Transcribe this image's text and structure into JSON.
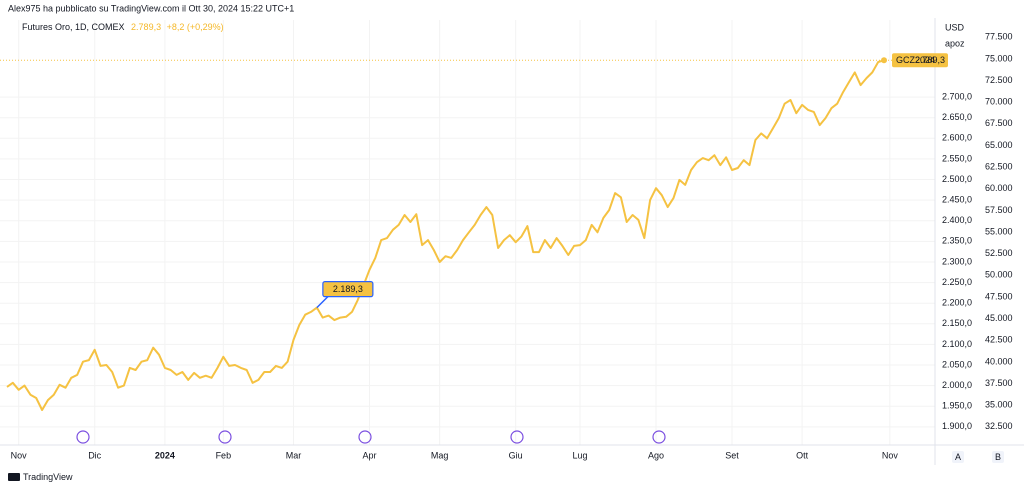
{
  "header": "Alex975 ha pubblicato su TradingView.com il Ott 30, 2024 15:22 UTC+1",
  "footer": "TradingView",
  "buttons": [
    "A",
    "B"
  ],
  "chart_data": {
    "type": "line",
    "title": "Futures Oro, 1D, COMEX",
    "price": "2.789,3",
    "change": "+8,2 (+0,29%)",
    "currency": "USD",
    "y2_label": "apoz",
    "annotation": "2.189,3",
    "grid": true,
    "categories": [
      null,
      null,
      "Nov",
      null,
      null,
      null,
      null,
      null,
      null,
      null,
      null,
      null,
      null,
      null,
      null,
      "Dic",
      null,
      null,
      null,
      null,
      null,
      null,
      null,
      null,
      null,
      null,
      null,
      "2024",
      null,
      null,
      null,
      null,
      null,
      null,
      null,
      null,
      null,
      "Feb",
      null,
      null,
      null,
      null,
      null,
      null,
      null,
      null,
      null,
      null,
      null,
      "Mar",
      null,
      null,
      null,
      null,
      null,
      null,
      null,
      null,
      null,
      null,
      null,
      null,
      "Apr",
      null,
      null,
      null,
      null,
      null,
      null,
      null,
      null,
      null,
      null,
      null,
      "Mag",
      null,
      null,
      null,
      null,
      null,
      null,
      null,
      null,
      null,
      null,
      null,
      null,
      "Giu",
      null,
      null,
      null,
      null,
      null,
      null,
      null,
      null,
      null,
      null,
      "Lug",
      null,
      null,
      null,
      null,
      null,
      null,
      null,
      null,
      null,
      null,
      null,
      null,
      "Ago",
      null,
      null,
      null,
      null,
      null,
      null,
      null,
      null,
      null,
      null,
      null,
      null,
      "Set",
      null,
      null,
      null,
      null,
      null,
      null,
      null,
      null,
      null,
      null,
      null,
      "Ott",
      null,
      null,
      null,
      null,
      null,
      null,
      null,
      null,
      null,
      null,
      null,
      null,
      null,
      null,
      "Nov"
    ],
    "series": [
      {
        "name": "GCZ2024",
        "color": "#f5c242",
        "values": [
          1997,
          2007,
          1990,
          2000,
          1978,
          1970,
          1941,
          1965,
          1978,
          2002,
          1995,
          2019,
          2026,
          2058,
          2062,
          2087,
          2048,
          2050,
          2033,
          1995,
          2000,
          2043,
          2038,
          2058,
          2062,
          2092,
          2075,
          2043,
          2038,
          2026,
          2033,
          2014,
          2031,
          2019,
          2024,
          2019,
          2043,
          2070,
          2048,
          2050,
          2043,
          2038,
          2007,
          2014,
          2033,
          2033,
          2048,
          2043,
          2058,
          2111,
          2147,
          2172,
          2179,
          2189.3,
          2165,
          2170,
          2159,
          2165,
          2167,
          2179,
          2208,
          2244,
          2281,
          2310,
          2353,
          2358,
          2378,
          2390,
          2414,
          2397,
          2416,
          2341,
          2353,
          2329,
          2300,
          2314,
          2310,
          2329,
          2353,
          2372,
          2390,
          2414,
          2433,
          2414,
          2334,
          2353,
          2365,
          2348,
          2362,
          2387,
          2324,
          2324,
          2353,
          2334,
          2358,
          2339,
          2317,
          2339,
          2341,
          2353,
          2390,
          2372,
          2407,
          2426,
          2467,
          2457,
          2397,
          2414,
          2402,
          2358,
          2450,
          2479,
          2462,
          2433,
          2455,
          2499,
          2487,
          2523,
          2542,
          2552,
          2547,
          2559,
          2535,
          2554,
          2523,
          2528,
          2547,
          2535,
          2596,
          2612,
          2600,
          2624,
          2649,
          2684,
          2693,
          2661,
          2681,
          2669,
          2664,
          2632,
          2649,
          2673,
          2684,
          2712,
          2736,
          2760,
          2729,
          2746,
          2760,
          2785,
          2789.3,
          null
        ]
      }
    ],
    "ylim": [
      1856,
      2887
    ],
    "yticks": [
      {
        "value": 1900,
        "label": "1.900,0"
      },
      {
        "value": 1950,
        "label": "1.950,0"
      },
      {
        "value": 2000,
        "label": "2.000,0"
      },
      {
        "value": 2050,
        "label": "2.050,0"
      },
      {
        "value": 2100,
        "label": "2.100,0"
      },
      {
        "value": 2150,
        "label": "2.150,0"
      },
      {
        "value": 2200,
        "label": "2.200,0"
      },
      {
        "value": 2250,
        "label": "2.250,0"
      },
      {
        "value": 2300,
        "label": "2.300,0"
      },
      {
        "value": 2350,
        "label": "2.350,0"
      },
      {
        "value": 2400,
        "label": "2.400,0"
      },
      {
        "value": 2450,
        "label": "2.450,0"
      },
      {
        "value": 2500,
        "label": "2.500,0"
      },
      {
        "value": 2550,
        "label": "2.550,0"
      },
      {
        "value": 2600,
        "label": "2.600,0"
      },
      {
        "value": 2650,
        "label": "2.650,0"
      },
      {
        "value": 2700,
        "label": "2.700,0"
      }
    ],
    "y2lim": [
      30.4,
      79.5
    ],
    "y2ticks": [
      {
        "value": 32.5,
        "label": "32.500"
      },
      {
        "value": 35,
        "label": "35.000"
      },
      {
        "value": 37.5,
        "label": "37.500"
      },
      {
        "value": 40,
        "label": "40.000"
      },
      {
        "value": 42.5,
        "label": "42.500"
      },
      {
        "value": 45,
        "label": "45.000"
      },
      {
        "value": 47.5,
        "label": "47.500"
      },
      {
        "value": 50,
        "label": "50.000"
      },
      {
        "value": 52.5,
        "label": "52.500"
      },
      {
        "value": 55,
        "label": "55.000"
      },
      {
        "value": 57.5,
        "label": "57.500"
      },
      {
        "value": 60,
        "label": "60.000"
      },
      {
        "value": 62.5,
        "label": "62.500"
      },
      {
        "value": 65,
        "label": "65.000"
      },
      {
        "value": 67.5,
        "label": "67.500"
      },
      {
        "value": 70,
        "label": "70.000"
      },
      {
        "value": 72.5,
        "label": "72.500"
      },
      {
        "value": 75,
        "label": "75.000"
      },
      {
        "value": 77.5,
        "label": "77.500"
      }
    ]
  }
}
